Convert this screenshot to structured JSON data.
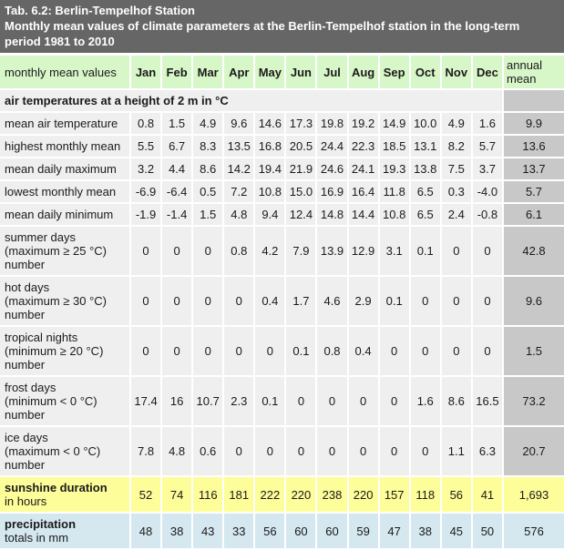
{
  "title": {
    "line1": "Tab. 6.2: Berlin-Tempelhof Station",
    "line2": "Monthly mean values of climate parameters at the Berlin-Tempelhof station in the long-term period 1981 to 2010"
  },
  "colors": {
    "title_bar_bg": "#666666",
    "title_bar_text": "#ffffff",
    "header_row_bg": "#d8f7c8",
    "data_row_bg": "#efefef",
    "annual_col_bg": "#c8c8c8",
    "sunshine_row_bg": "#fdfd99",
    "precipitation_row_bg": "#d5e8f0",
    "grid_color": "#ffffff",
    "text_color": "#1a1a1a"
  },
  "table": {
    "header": {
      "label": "monthly mean values",
      "months": [
        "Jan",
        "Feb",
        "Mar",
        "Apr",
        "May",
        "Jun",
        "Jul",
        "Aug",
        "Sep",
        "Oct",
        "Nov",
        "Dec"
      ],
      "annual": "annual mean"
    },
    "section_label": "air temperatures at a height of 2 m in °C",
    "rows": [
      {
        "style": "default",
        "label": "mean air temperature",
        "values": [
          "0.8",
          "1.5",
          "4.9",
          "9.6",
          "14.6",
          "17.3",
          "19.8",
          "19.2",
          "14.9",
          "10.0",
          "4.9",
          "1.6"
        ],
        "annual": "9.9"
      },
      {
        "style": "default",
        "label": "highest monthly mean",
        "values": [
          "5.5",
          "6.7",
          "8.3",
          "13.5",
          "16.8",
          "20.5",
          "24.4",
          "22.3",
          "18.5",
          "13.1",
          "8.2",
          "5.7"
        ],
        "annual": "13.6"
      },
      {
        "style": "default",
        "label": "mean daily maximum",
        "values": [
          "3.2",
          "4.4",
          "8.6",
          "14.2",
          "19.4",
          "21.9",
          "24.6",
          "24.1",
          "19.3",
          "13.8",
          "7.5",
          "3.7"
        ],
        "annual": "13.7"
      },
      {
        "style": "default",
        "label": "lowest monthly mean",
        "values": [
          "-6.9",
          "-6.4",
          "0.5",
          "7.2",
          "10.8",
          "15.0",
          "16.9",
          "16.4",
          "11.8",
          "6.5",
          "0.3",
          "-4.0"
        ],
        "annual": "5.7"
      },
      {
        "style": "default",
        "label": "mean daily minimum",
        "values": [
          "-1.9",
          "-1.4",
          "1.5",
          "4.8",
          "9.4",
          "12.4",
          "14.8",
          "14.4",
          "10.8",
          "6.5",
          "2.4",
          "-0.8"
        ],
        "annual": "6.1"
      },
      {
        "style": "default",
        "label": "summer days\n(maximum ≥ 25 °C)\nnumber",
        "values": [
          "0",
          "0",
          "0",
          "0.8",
          "4.2",
          "7.9",
          "13.9",
          "12.9",
          "3.1",
          "0.1",
          "0",
          "0"
        ],
        "annual": "42.8"
      },
      {
        "style": "default",
        "label": "hot days\n(maximum ≥ 30 °C)\nnumber",
        "values": [
          "0",
          "0",
          "0",
          "0",
          "0.4",
          "1.7",
          "4.6",
          "2.9",
          "0.1",
          "0",
          "0",
          "0"
        ],
        "annual": "9.6"
      },
      {
        "style": "default",
        "label": "tropical nights\n(minimum ≥ 20 °C)\nnumber",
        "values": [
          "0",
          "0",
          "0",
          "0",
          "0",
          "0.1",
          "0.8",
          "0.4",
          "0",
          "0",
          "0",
          "0"
        ],
        "annual": "1.5"
      },
      {
        "style": "default",
        "label": "frost days\n(minimum < 0 °C)\nnumber",
        "values": [
          "17.4",
          "16",
          "10.7",
          "2.3",
          "0.1",
          "0",
          "0",
          "0",
          "0",
          "1.6",
          "8.6",
          "16.5"
        ],
        "annual": "73.2"
      },
      {
        "style": "default",
        "label": "ice days\n(maximum < 0 °C)\nnumber",
        "values": [
          "7.8",
          "4.8",
          "0.6",
          "0",
          "0",
          "0",
          "0",
          "0",
          "0",
          "0",
          "1.1",
          "6.3"
        ],
        "annual": "20.7"
      },
      {
        "style": "sunshine",
        "label": "sunshine duration",
        "sub": "in hours",
        "values": [
          "52",
          "74",
          "116",
          "181",
          "222",
          "220",
          "238",
          "220",
          "157",
          "118",
          "56",
          "41"
        ],
        "annual": "1,693"
      },
      {
        "style": "precipitation",
        "label": "precipitation",
        "sub": "totals in mm",
        "values": [
          "48",
          "38",
          "43",
          "33",
          "56",
          "60",
          "60",
          "59",
          "47",
          "38",
          "45",
          "50"
        ],
        "annual": "576"
      }
    ]
  },
  "chart_data": {
    "type": "table",
    "title": "Tab. 6.2: Berlin-Tempelhof Station",
    "subtitle": "Monthly mean values of climate parameters at the Berlin-Tempelhof station in the long-term period 1981 to 2010",
    "section": "air temperatures at a height of 2 m in °C",
    "categories": [
      "Jan",
      "Feb",
      "Mar",
      "Apr",
      "May",
      "Jun",
      "Jul",
      "Aug",
      "Sep",
      "Oct",
      "Nov",
      "Dec"
    ],
    "annual_column_label": "annual mean",
    "series": [
      {
        "name": "mean air temperature (°C)",
        "values": [
          0.8,
          1.5,
          4.9,
          9.6,
          14.6,
          17.3,
          19.8,
          19.2,
          14.9,
          10.0,
          4.9,
          1.6
        ],
        "annual": 9.9
      },
      {
        "name": "highest monthly mean (°C)",
        "values": [
          5.5,
          6.7,
          8.3,
          13.5,
          16.8,
          20.5,
          24.4,
          22.3,
          18.5,
          13.1,
          8.2,
          5.7
        ],
        "annual": 13.6
      },
      {
        "name": "mean daily maximum (°C)",
        "values": [
          3.2,
          4.4,
          8.6,
          14.2,
          19.4,
          21.9,
          24.6,
          24.1,
          19.3,
          13.8,
          7.5,
          3.7
        ],
        "annual": 13.7
      },
      {
        "name": "lowest monthly mean (°C)",
        "values": [
          -6.9,
          -6.4,
          0.5,
          7.2,
          10.8,
          15.0,
          16.9,
          16.4,
          11.8,
          6.5,
          0.3,
          -4.0
        ],
        "annual": 5.7
      },
      {
        "name": "mean daily minimum (°C)",
        "values": [
          -1.9,
          -1.4,
          1.5,
          4.8,
          9.4,
          12.4,
          14.8,
          14.4,
          10.8,
          6.5,
          2.4,
          -0.8
        ],
        "annual": 6.1
      },
      {
        "name": "summer days (maximum ≥ 25 °C) number",
        "values": [
          0,
          0,
          0,
          0.8,
          4.2,
          7.9,
          13.9,
          12.9,
          3.1,
          0.1,
          0,
          0
        ],
        "annual": 42.8
      },
      {
        "name": "hot days (maximum ≥ 30 °C) number",
        "values": [
          0,
          0,
          0,
          0,
          0.4,
          1.7,
          4.6,
          2.9,
          0.1,
          0,
          0,
          0
        ],
        "annual": 9.6
      },
      {
        "name": "tropical nights (minimum ≥ 20 °C) number",
        "values": [
          0,
          0,
          0,
          0,
          0,
          0.1,
          0.8,
          0.4,
          0,
          0,
          0,
          0
        ],
        "annual": 1.5
      },
      {
        "name": "frost days (minimum < 0 °C) number",
        "values": [
          17.4,
          16,
          10.7,
          2.3,
          0.1,
          0,
          0,
          0,
          0,
          1.6,
          8.6,
          16.5
        ],
        "annual": 73.2
      },
      {
        "name": "ice days (maximum < 0 °C) number",
        "values": [
          7.8,
          4.8,
          0.6,
          0,
          0,
          0,
          0,
          0,
          0,
          0,
          1.1,
          6.3
        ],
        "annual": 20.7
      },
      {
        "name": "sunshine duration in hours",
        "values": [
          52,
          74,
          116,
          181,
          222,
          220,
          238,
          220,
          157,
          118,
          56,
          41
        ],
        "annual": 1693
      },
      {
        "name": "precipitation totals in mm",
        "values": [
          48,
          38,
          43,
          33,
          56,
          60,
          60,
          59,
          47,
          38,
          45,
          50
        ],
        "annual": 576
      }
    ]
  }
}
